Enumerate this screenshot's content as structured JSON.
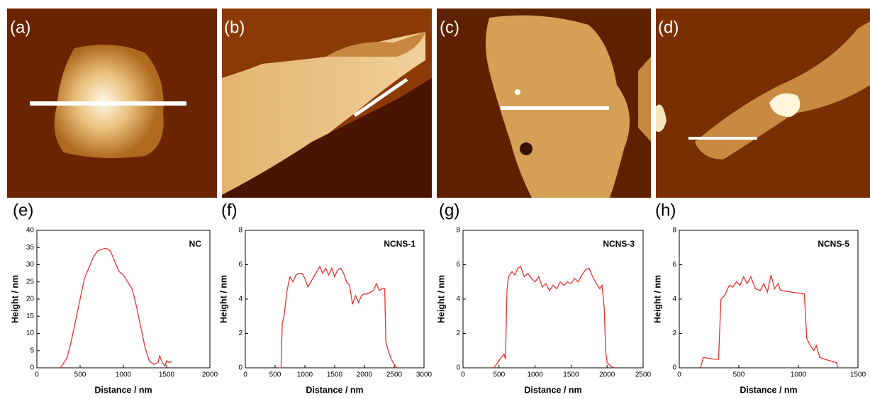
{
  "panel_labels": [
    "(a)",
    "(b)",
    "(c)",
    "(d)"
  ],
  "chart_data": [
    {
      "type": "line",
      "label": "(e)",
      "xlabel": "Distance / nm",
      "ylabel": "Height / nm",
      "xlim": [
        0,
        2000
      ],
      "xticks": [
        0,
        500,
        1000,
        1500,
        2000
      ],
      "ylim": [
        0,
        40
      ],
      "yticks": [
        0,
        5,
        10,
        15,
        20,
        25,
        30,
        35,
        40
      ],
      "x": [
        270,
        300,
        350,
        400,
        450,
        500,
        550,
        600,
        650,
        700,
        750,
        800,
        850,
        900,
        950,
        1000,
        1050,
        1100,
        1150,
        1200,
        1250,
        1300,
        1350,
        1400,
        1420,
        1450,
        1480,
        1500,
        1530,
        1560
      ],
      "series": [
        {
          "name": "NC",
          "color": "#e8312f",
          "values": [
            0,
            1,
            3,
            8,
            14,
            20,
            26,
            29,
            32,
            34,
            34.5,
            34.8,
            34,
            31,
            28,
            27,
            25,
            23,
            18,
            12,
            6,
            2,
            1,
            1.5,
            3.5,
            1.5,
            0.5,
            2,
            1.5,
            2
          ]
        }
      ]
    },
    {
      "type": "line",
      "label": "(f)",
      "xlabel": "Distance / nm",
      "ylabel": "Height / nm",
      "xlim": [
        0,
        3000
      ],
      "xticks": [
        0,
        500,
        1000,
        1500,
        2000,
        2500,
        3000
      ],
      "ylim": [
        0,
        8
      ],
      "yticks": [
        0,
        2,
        4,
        6,
        8
      ],
      "x": [
        550,
        600,
        620,
        650,
        700,
        750,
        800,
        850,
        900,
        950,
        1000,
        1050,
        1100,
        1150,
        1200,
        1250,
        1300,
        1350,
        1400,
        1450,
        1500,
        1550,
        1600,
        1650,
        1700,
        1750,
        1800,
        1850,
        1900,
        1950,
        2000,
        2050,
        2100,
        2150,
        2200,
        2250,
        2300,
        2340,
        2360,
        2400,
        2450,
        2500,
        2550
      ],
      "series": [
        {
          "name": "NCNS-1",
          "color": "#e8312f",
          "values": [
            0,
            0,
            2.6,
            3,
            4.5,
            5.3,
            5.0,
            5.4,
            5.5,
            5.5,
            5.2,
            4.7,
            5.0,
            5.3,
            5.6,
            5.9,
            5.5,
            5.8,
            5.4,
            5.8,
            5.3,
            5.7,
            5.8,
            5.5,
            5.0,
            4.8,
            3.7,
            4.2,
            3.8,
            4.2,
            4.3,
            4.3,
            4.4,
            4.5,
            4.9,
            4.5,
            4.6,
            4.6,
            1.5,
            1.0,
            0.5,
            0.2,
            0
          ]
        }
      ]
    },
    {
      "type": "line",
      "label": "(g)",
      "xlabel": "Distance / nm",
      "ylabel": "Height / nm",
      "xlim": [
        0,
        2500
      ],
      "xticks": [
        0,
        500,
        1000,
        1500,
        2000,
        2500
      ],
      "ylim": [
        0,
        8
      ],
      "yticks": [
        0,
        2,
        4,
        6,
        8
      ],
      "x": [
        430,
        480,
        530,
        570,
        590,
        610,
        630,
        680,
        720,
        760,
        800,
        850,
        900,
        950,
        1000,
        1050,
        1100,
        1150,
        1200,
        1250,
        1300,
        1350,
        1400,
        1450,
        1500,
        1550,
        1600,
        1650,
        1700,
        1750,
        1800,
        1850,
        1900,
        1930,
        1960,
        1980,
        2000,
        2050,
        2100
      ],
      "series": [
        {
          "name": "NCNS-3",
          "color": "#e8312f",
          "values": [
            0,
            0.3,
            0.6,
            0.8,
            0.5,
            4.5,
            5.3,
            5.6,
            5.4,
            5.8,
            5.9,
            5.3,
            5.5,
            5.2,
            5.0,
            5.3,
            4.7,
            4.9,
            4.5,
            4.8,
            4.6,
            5.0,
            4.8,
            5.0,
            4.9,
            5.2,
            5.0,
            5.4,
            5.7,
            5.8,
            5.3,
            4.9,
            4.6,
            4.8,
            3.5,
            1.0,
            0.3,
            0.1,
            0
          ]
        }
      ]
    },
    {
      "type": "line",
      "label": "(h)",
      "xlabel": "Distance / nm",
      "ylabel": "Height / nm",
      "xlim": [
        0,
        1500
      ],
      "xticks": [
        0,
        500,
        1000,
        1500
      ],
      "ylim": [
        0,
        8
      ],
      "yticks": [
        0,
        2,
        4,
        6,
        8
      ],
      "x": [
        180,
        200,
        300,
        330,
        350,
        380,
        400,
        420,
        450,
        480,
        510,
        540,
        570,
        600,
        640,
        680,
        710,
        740,
        770,
        800,
        830,
        850,
        1050,
        1070,
        1100,
        1130,
        1150,
        1180,
        1220,
        1320,
        1330
      ],
      "series": [
        {
          "name": "NCNS-5",
          "color": "#e8312f",
          "values": [
            0,
            0.6,
            0.5,
            0.5,
            4.0,
            4.2,
            4.5,
            4.8,
            4.7,
            5.0,
            4.8,
            5.3,
            4.9,
            5.3,
            4.6,
            4.5,
            4.9,
            4.4,
            5.4,
            4.6,
            4.9,
            4.5,
            4.3,
            1.7,
            1.3,
            1.0,
            1.3,
            0.6,
            0.5,
            0.3,
            0
          ]
        }
      ]
    }
  ]
}
